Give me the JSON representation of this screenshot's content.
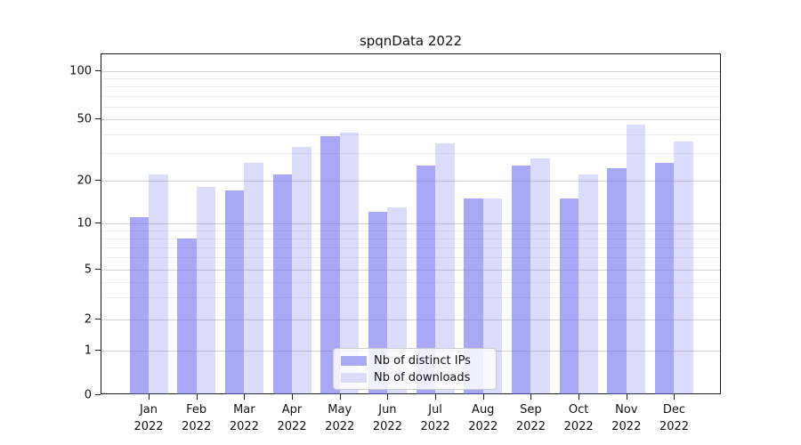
{
  "title": "spqnData 2022",
  "chart_data": {
    "type": "bar",
    "title": "spqnData 2022",
    "categories": [
      "Jan 2022",
      "Feb 2022",
      "Mar 2022",
      "Apr 2022",
      "May 2022",
      "Jun 2022",
      "Jul 2022",
      "Aug 2022",
      "Sep 2022",
      "Oct 2022",
      "Nov 2022",
      "Dec 2022"
    ],
    "series": [
      {
        "name": "Nb of distinct IPs",
        "color": "#a9a9f6",
        "fill": "rgba(100,100,240,0.56)",
        "values": [
          11,
          8,
          17,
          22,
          39,
          12,
          25,
          15,
          25,
          15,
          24,
          26
        ]
      },
      {
        "name": "Nb of downloads",
        "color": "#dcdcf9",
        "fill": "rgba(100,100,240,0.23)",
        "values": [
          22,
          18,
          26,
          33,
          41,
          13,
          35,
          15,
          28,
          22,
          46,
          36
        ]
      }
    ],
    "xlabel": "",
    "ylabel": "",
    "yscale": "symlog",
    "yticks": [
      0,
      1,
      2,
      5,
      10,
      20,
      50,
      100
    ],
    "minor_gridlines": [
      3,
      4,
      6,
      7,
      8,
      9,
      30,
      40,
      60,
      70,
      80,
      90
    ],
    "ylim": [
      0,
      120
    ],
    "grid": true,
    "legend_position": "lower center"
  },
  "legend": {
    "items": [
      {
        "label": "Nb of distinct IPs",
        "color": "#a9a9f6"
      },
      {
        "label": "Nb of downloads",
        "color": "#dcdcf9"
      }
    ]
  }
}
